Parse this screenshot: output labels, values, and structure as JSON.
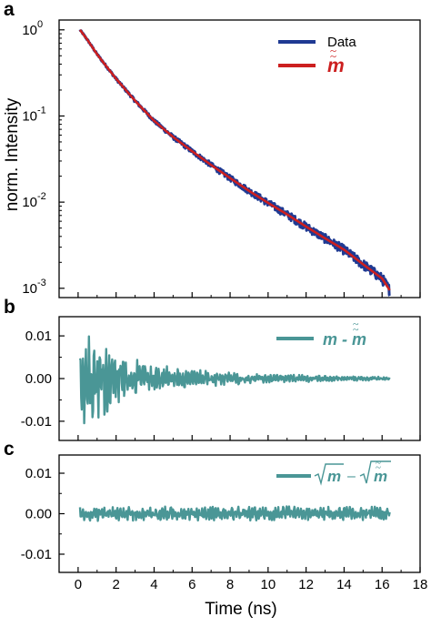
{
  "chart_data": [
    {
      "panel": "a",
      "type": "line",
      "ylabel": "norm. Intensity",
      "yscale": "log",
      "ylim": [
        0.00078,
        1.3
      ],
      "xlim": [
        -1,
        18
      ],
      "yticks": [
        {
          "value": 1,
          "label": "10",
          "exp": "0"
        },
        {
          "value": 0.1,
          "label": "10",
          "exp": "-1"
        },
        {
          "value": 0.01,
          "label": "10",
          "exp": "-2"
        },
        {
          "value": 0.001,
          "label": "10",
          "exp": "-3"
        }
      ],
      "legend_position": "top-right",
      "series": [
        {
          "name": "Data",
          "color": "#1f3a93",
          "noisy": true,
          "x": [
            0.1,
            0.5,
            1.0,
            2.0,
            3.0,
            4.0,
            5.0,
            6.0,
            7.0,
            8.0,
            9.0,
            10.0,
            11.0,
            12.0,
            13.0,
            14.0,
            15.0,
            16.0,
            16.4
          ],
          "y": [
            1.0,
            0.76,
            0.52,
            0.27,
            0.15,
            0.088,
            0.057,
            0.039,
            0.027,
            0.019,
            0.0135,
            0.0098,
            0.0072,
            0.0052,
            0.0038,
            0.0028,
            0.0019,
            0.0013,
            0.00095
          ]
        },
        {
          "name": "m-tilde-tilde",
          "color": "#cc1f1f",
          "noisy": false,
          "x": [
            0.1,
            0.5,
            1.0,
            2.0,
            3.0,
            4.0,
            5.0,
            6.0,
            7.0,
            8.0,
            9.0,
            10.0,
            11.0,
            12.0,
            13.0,
            14.0,
            15.0,
            16.0,
            16.4
          ],
          "y": [
            1.0,
            0.76,
            0.52,
            0.27,
            0.15,
            0.088,
            0.057,
            0.039,
            0.027,
            0.019,
            0.0135,
            0.0098,
            0.0072,
            0.0052,
            0.0038,
            0.0028,
            0.0019,
            0.0013,
            0.00095
          ]
        }
      ]
    },
    {
      "panel": "b",
      "type": "line",
      "ylim": [
        -0.0145,
        0.0145
      ],
      "xlim": [
        -1,
        18
      ],
      "yticks": [
        {
          "value": 0.01,
          "label": "0.01"
        },
        {
          "value": 0,
          "label": "0.00"
        },
        {
          "value": -0.01,
          "label": "-0.01"
        }
      ],
      "legend_position": "top-right",
      "series": [
        {
          "name": "m - m-tilde-tilde",
          "color": "#4a9696",
          "x": [
            0.1,
            0.4,
            0.7,
            1.0,
            1.5,
            2.0,
            3.0,
            4.0,
            5.0,
            6.0,
            8.0,
            10.0,
            12.0,
            14.0,
            16.4
          ],
          "amplitude": [
            0.009,
            0.012,
            0.011,
            0.01,
            0.0085,
            0.007,
            0.005,
            0.0037,
            0.0028,
            0.0022,
            0.0015,
            0.0011,
            0.0008,
            0.0006,
            0.0004
          ]
        }
      ]
    },
    {
      "panel": "c",
      "type": "line",
      "xlabel": "Time (ns)",
      "ylim": [
        -0.0145,
        0.0145
      ],
      "xlim": [
        -1,
        18
      ],
      "xticks": [
        0,
        2,
        4,
        6,
        8,
        10,
        12,
        14,
        16,
        18
      ],
      "yticks": [
        {
          "value": 0.01,
          "label": "0.01"
        },
        {
          "value": 0,
          "label": "0.00"
        },
        {
          "value": -0.01,
          "label": "-0.01"
        }
      ],
      "legend_position": "top-right",
      "series": [
        {
          "name": "sqrt(m) - sqrt(m-tilde-tilde)",
          "color": "#4a9696",
          "x": [
            0.1,
            4.0,
            8.0,
            12.0,
            16.4
          ],
          "amplitude": [
            0.0018,
            0.0018,
            0.0018,
            0.0018,
            0.0018
          ]
        }
      ]
    }
  ],
  "text": {
    "panel_a": "a",
    "panel_b": "b",
    "panel_c": "c",
    "ylabel_a": "norm. Intensity",
    "xlabel": "Time (ns)",
    "legend_data": "Data",
    "legend_fit": "m",
    "legend_b": "m - m",
    "legend_c": "m",
    "legend_c_minus": "–",
    "legend_c_b": "m"
  }
}
